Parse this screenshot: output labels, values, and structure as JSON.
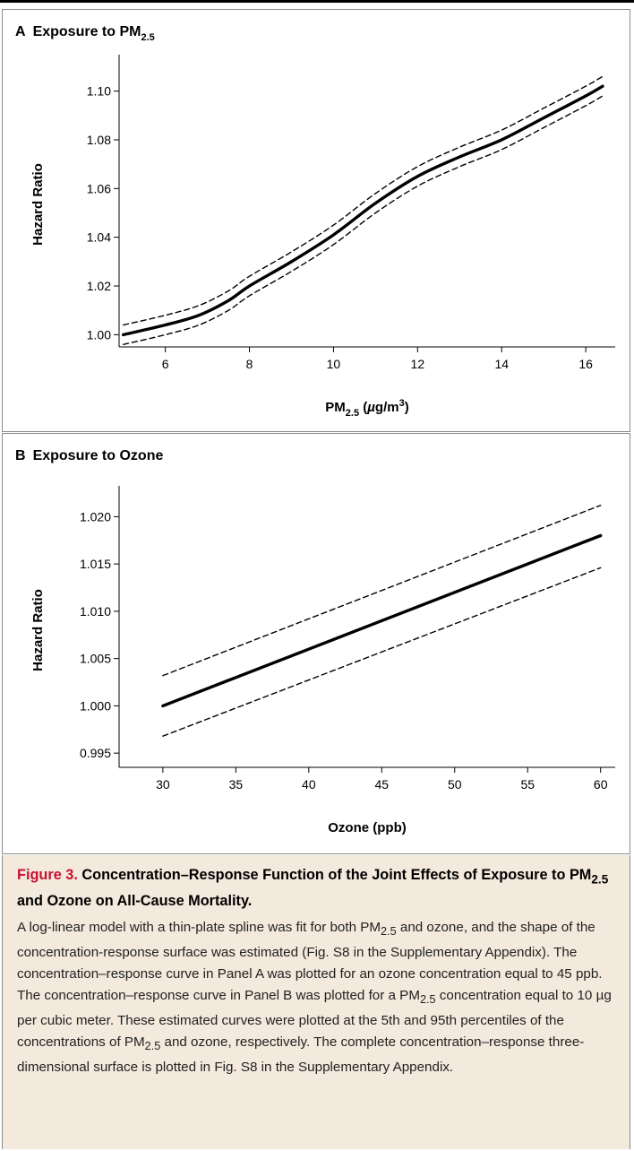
{
  "chart_data": [
    {
      "type": "line",
      "panel_label": "A",
      "title": "Exposure to PM2.5",
      "title_parts": [
        "Exposure to PM",
        "2.5",
        ""
      ],
      "xlabel": "PM2.5 (µg/m3)",
      "xlabel_parts": [
        "PM",
        "2.5",
        " (",
        "µ",
        "g/m",
        "3",
        ")"
      ],
      "ylabel": "Hazard Ratio",
      "xlim": [
        4.9,
        16.7
      ],
      "ylim": [
        0.995,
        1.112
      ],
      "xticks": [
        6,
        8,
        10,
        12,
        14,
        16
      ],
      "xtick_labels": [
        "6",
        "8",
        "10",
        "12",
        "14",
        "16"
      ],
      "yticks": [
        1.0,
        1.02,
        1.04,
        1.06,
        1.08,
        1.1
      ],
      "ytick_labels": [
        "1.00",
        "1.02",
        "1.04",
        "1.06",
        "1.08",
        "1.10"
      ],
      "x": [
        5.0,
        6.0,
        6.8,
        7.5,
        8.0,
        9.0,
        10.0,
        11.0,
        12.0,
        13.0,
        14.0,
        15.0,
        16.0,
        16.4
      ],
      "series": [
        {
          "role": "estimate",
          "style": "solid",
          "values": [
            1.0,
            1.004,
            1.008,
            1.014,
            1.02,
            1.03,
            1.041,
            1.054,
            1.065,
            1.073,
            1.08,
            1.089,
            1.098,
            1.102
          ]
        },
        {
          "role": "upper",
          "style": "dashed",
          "values": [
            1.004,
            1.008,
            1.012,
            1.018,
            1.024,
            1.034,
            1.045,
            1.058,
            1.069,
            1.077,
            1.084,
            1.093,
            1.102,
            1.106
          ]
        },
        {
          "role": "lower",
          "style": "dashed",
          "values": [
            0.996,
            1.0,
            1.004,
            1.01,
            1.016,
            1.026,
            1.037,
            1.05,
            1.061,
            1.069,
            1.076,
            1.085,
            1.094,
            1.098
          ]
        }
      ]
    },
    {
      "type": "line",
      "panel_label": "B",
      "title": "Exposure to Ozone",
      "title_parts": [
        "Exposure to Ozone",
        "",
        ""
      ],
      "xlabel": "Ozone (ppb)",
      "xlabel_parts": [
        "Ozone (ppb)",
        "",
        "",
        "",
        "",
        "",
        ""
      ],
      "ylabel": "Hazard Ratio",
      "xlim": [
        27,
        61
      ],
      "ylim": [
        0.9935,
        1.0225
      ],
      "xticks": [
        30,
        35,
        40,
        45,
        50,
        55,
        60
      ],
      "xtick_labels": [
        "30",
        "35",
        "40",
        "45",
        "50",
        "55",
        "60"
      ],
      "yticks": [
        0.995,
        1.0,
        1.005,
        1.01,
        1.015,
        1.02
      ],
      "ytick_labels": [
        "0.995",
        "1.000",
        "1.005",
        "1.010",
        "1.015",
        "1.020"
      ],
      "x": [
        30,
        60
      ],
      "series": [
        {
          "role": "estimate",
          "style": "solid",
          "values": [
            1.0,
            1.018
          ]
        },
        {
          "role": "upper",
          "style": "dashed",
          "values": [
            1.0032,
            1.0212
          ]
        },
        {
          "role": "lower",
          "style": "dashed",
          "values": [
            0.9968,
            1.0146
          ]
        }
      ]
    }
  ],
  "caption": {
    "figure_label": "Figure 3.",
    "title_parts": [
      " Concentration–Response Function of the Joint Effects of Exposure to PM",
      "2.5",
      " and Ozone on All-Cause Mortality."
    ],
    "body_parts": [
      "A log-linear model with a thin-plate spline was fit for both PM",
      "2.5",
      " and ozone, and the shape of the concentration-response surface was estimated (Fig. S8 in the Supplementary Appendix). The concentration–response curve in Panel A was plotted for an ozone concentration equal to 45 ppb. The concentration–response curve in Panel B was plotted for a PM",
      "2.5",
      " concentration equal to 10 µg per cubic meter. These estimated curves were plotted at the 5th and 95th percentiles of the concentrations of PM",
      "2.5",
      " and ozone, respectively. The complete concentration–response three-dimensional surface is plotted in Fig. S8 in the Supplementary Appendix."
    ]
  },
  "colors": {
    "caption_background": "#f3e9dc",
    "figure_label": "#c8102e",
    "line": "#000000",
    "panel_border": "#8a8a8a"
  }
}
